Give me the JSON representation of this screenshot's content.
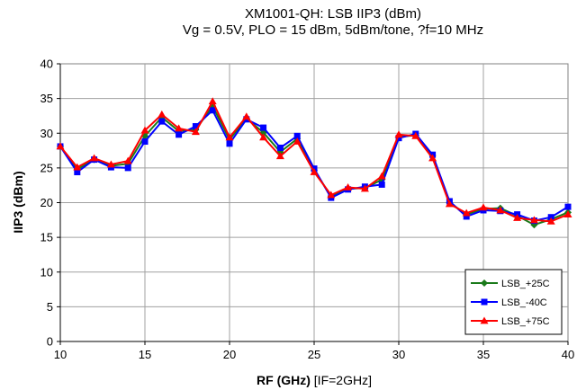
{
  "chart_data": {
    "type": "line",
    "title_line1": "XM1001-QH: LSB IIP3 (dBm)",
    "title_line2": "Vg = 0.5V, PLO = 15 dBm, 5dBm/tone, ?f=10 MHz",
    "xlabel_bold": "RF (GHz)",
    "xlabel_rest": " [IF=2GHz]",
    "ylabel": "IIP3 (dBm)",
    "xlim": [
      10,
      40
    ],
    "ylim": [
      0,
      40
    ],
    "x_ticks": [
      10,
      15,
      20,
      25,
      30,
      35,
      40
    ],
    "y_ticks": [
      0,
      5,
      10,
      15,
      20,
      25,
      30,
      35,
      40
    ],
    "grid": true,
    "legend_position": "bottom-right",
    "x": [
      10,
      11,
      12,
      13,
      14,
      15,
      16,
      17,
      18,
      19,
      20,
      21,
      22,
      23,
      24,
      25,
      26,
      27,
      28,
      29,
      30,
      31,
      32,
      33,
      34,
      35,
      36,
      37,
      38,
      39,
      40
    ],
    "series": [
      {
        "name": "LSB_+25C",
        "color": "#1a7a1a",
        "marker": "diamond",
        "values": [
          28.1,
          24.8,
          26.2,
          25.3,
          25.6,
          29.6,
          32.3,
          30.3,
          30.5,
          33.9,
          29.1,
          32.1,
          30.1,
          27.3,
          29.2,
          24.7,
          20.9,
          22.0,
          22.1,
          23.3,
          29.5,
          29.7,
          26.8,
          20.0,
          18.3,
          19.1,
          19.2,
          18.1,
          16.8,
          17.6,
          18.6
        ]
      },
      {
        "name": "LSB_-40C",
        "color": "#0000ff",
        "marker": "square",
        "values": [
          28.1,
          24.4,
          26.2,
          25.1,
          25.0,
          28.8,
          31.7,
          29.8,
          31.0,
          33.3,
          28.5,
          32.0,
          30.8,
          27.9,
          29.6,
          24.9,
          20.7,
          21.9,
          22.3,
          22.6,
          29.3,
          29.9,
          26.9,
          20.2,
          18.0,
          18.9,
          18.8,
          18.3,
          17.4,
          17.9,
          19.4
        ]
      },
      {
        "name": "LSB_+75C",
        "color": "#ff0000",
        "marker": "triangle",
        "values": [
          28.1,
          25.1,
          26.4,
          25.5,
          26.0,
          30.4,
          32.7,
          30.7,
          30.2,
          34.6,
          29.4,
          32.4,
          29.4,
          26.7,
          28.8,
          24.4,
          21.1,
          22.2,
          22.0,
          23.8,
          29.8,
          29.6,
          26.4,
          19.8,
          18.5,
          19.3,
          18.9,
          17.8,
          17.5,
          17.3,
          18.3
        ]
      }
    ]
  }
}
